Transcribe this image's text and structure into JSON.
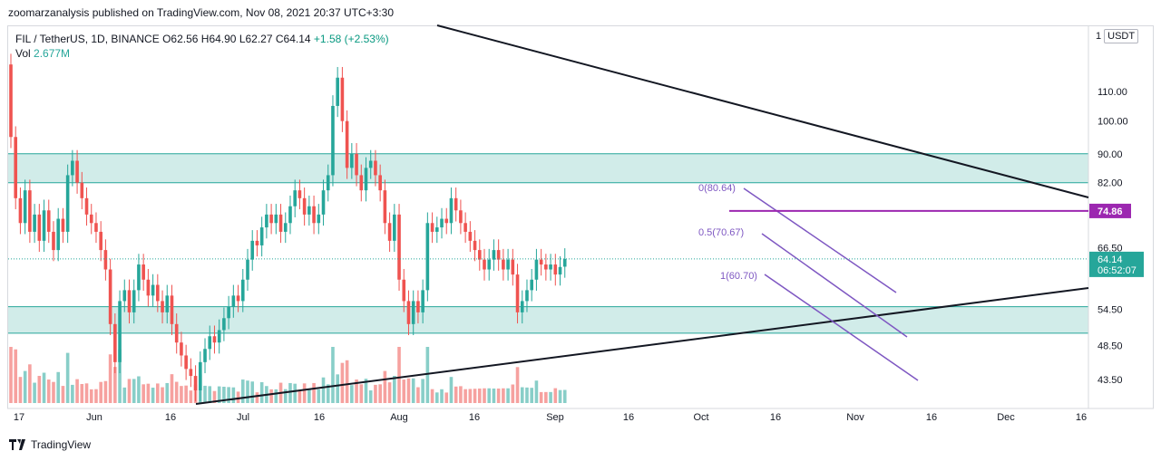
{
  "header": {
    "published": "zoomarzanalysis published on TradingView.com, Nov 08, 2021 20:37 UTC+3:30"
  },
  "legend": {
    "symbol": "FIL / TetherUS, 1D, BINANCE",
    "open": "O62.56",
    "high": "H64.90",
    "low": "L62.27",
    "close": "C64.14",
    "change": "+1.58 (+2.53%)",
    "vol_label": "Vol",
    "vol_value": "2.677M"
  },
  "currency": {
    "prefix": "1",
    "label": "USDT"
  },
  "colors": {
    "up": "#26a69a",
    "down": "#ef5350",
    "zone": "#b2dfdb",
    "purple": "#9c27b0",
    "fib": "#7e57c2"
  },
  "chart_data": {
    "type": "candlestick",
    "y_ticks": [
      "110.00",
      "100.00",
      "90.00",
      "82.00",
      "74.86",
      "66.50",
      "64.14",
      "54.50",
      "48.50",
      "43.50"
    ],
    "x_ticks": [
      "17",
      "Jun",
      "16",
      "Jul",
      "16",
      "Aug",
      "16",
      "Sep",
      "16",
      "Oct",
      "16",
      "Nov",
      "16",
      "Dec",
      "16"
    ],
    "price_scale": "log",
    "last_price": {
      "value": "64.14",
      "countdown": "06:52:07"
    },
    "level_74": {
      "value": "74.86"
    },
    "fib": {
      "top": "0(80.64)",
      "mid": "0.5(70.67)",
      "bottom": "1(60.70)"
    },
    "zones": [
      {
        "name": "upper-zone",
        "from": 82,
        "to": 90
      },
      {
        "name": "lower-zone",
        "from": 50.5,
        "to": 55
      }
    ],
    "series": [
      {
        "open": 120,
        "close": 95
      },
      {
        "open": 95,
        "close": 78
      },
      {
        "open": 78,
        "close": 72
      },
      {
        "open": 72,
        "close": 80
      },
      {
        "open": 80,
        "close": 70
      },
      {
        "open": 70,
        "close": 74
      },
      {
        "open": 74,
        "close": 68
      },
      {
        "open": 68,
        "close": 75
      },
      {
        "open": 75,
        "close": 70
      },
      {
        "open": 70,
        "close": 66
      },
      {
        "open": 66,
        "close": 73
      },
      {
        "open": 73,
        "close": 70
      },
      {
        "open": 70,
        "close": 84
      },
      {
        "open": 84,
        "close": 88
      },
      {
        "open": 88,
        "close": 82
      },
      {
        "open": 82,
        "close": 78
      },
      {
        "open": 78,
        "close": 74
      },
      {
        "open": 74,
        "close": 72
      },
      {
        "open": 72,
        "close": 70
      },
      {
        "open": 70,
        "close": 66
      },
      {
        "open": 66,
        "close": 62
      },
      {
        "open": 62,
        "close": 52
      },
      {
        "open": 52,
        "close": 46
      },
      {
        "open": 46,
        "close": 56
      },
      {
        "open": 56,
        "close": 58
      },
      {
        "open": 58,
        "close": 54
      },
      {
        "open": 54,
        "close": 58
      },
      {
        "open": 58,
        "close": 63
      },
      {
        "open": 63,
        "close": 60
      },
      {
        "open": 60,
        "close": 57
      },
      {
        "open": 57,
        "close": 59
      },
      {
        "open": 59,
        "close": 56
      },
      {
        "open": 56,
        "close": 54
      },
      {
        "open": 54,
        "close": 57
      },
      {
        "open": 57,
        "close": 52
      },
      {
        "open": 52,
        "close": 49
      },
      {
        "open": 49,
        "close": 47
      },
      {
        "open": 47,
        "close": 45
      },
      {
        "open": 45,
        "close": 44
      },
      {
        "open": 44,
        "close": 42
      },
      {
        "open": 42,
        "close": 46
      },
      {
        "open": 46,
        "close": 48
      },
      {
        "open": 48,
        "close": 50
      },
      {
        "open": 50,
        "close": 49
      },
      {
        "open": 49,
        "close": 51
      },
      {
        "open": 51,
        "close": 53
      },
      {
        "open": 53,
        "close": 55
      },
      {
        "open": 55,
        "close": 57
      },
      {
        "open": 57,
        "close": 56
      },
      {
        "open": 56,
        "close": 60
      },
      {
        "open": 60,
        "close": 64
      },
      {
        "open": 64,
        "close": 68
      },
      {
        "open": 68,
        "close": 67
      },
      {
        "open": 67,
        "close": 71
      },
      {
        "open": 71,
        "close": 74
      },
      {
        "open": 74,
        "close": 72
      },
      {
        "open": 72,
        "close": 74
      },
      {
        "open": 74,
        "close": 70
      },
      {
        "open": 70,
        "close": 72
      },
      {
        "open": 72,
        "close": 76
      },
      {
        "open": 76,
        "close": 80
      },
      {
        "open": 80,
        "close": 78
      },
      {
        "open": 78,
        "close": 74
      },
      {
        "open": 74,
        "close": 76
      },
      {
        "open": 76,
        "close": 72
      },
      {
        "open": 72,
        "close": 74
      },
      {
        "open": 74,
        "close": 80
      },
      {
        "open": 80,
        "close": 84
      },
      {
        "open": 84,
        "close": 105
      },
      {
        "open": 105,
        "close": 115
      },
      {
        "open": 115,
        "close": 100
      },
      {
        "open": 100,
        "close": 86
      },
      {
        "open": 86,
        "close": 90
      },
      {
        "open": 90,
        "close": 84
      },
      {
        "open": 84,
        "close": 80
      },
      {
        "open": 80,
        "close": 86
      },
      {
        "open": 86,
        "close": 88
      },
      {
        "open": 88,
        "close": 84
      },
      {
        "open": 84,
        "close": 80
      },
      {
        "open": 80,
        "close": 72
      },
      {
        "open": 72,
        "close": 68
      },
      {
        "open": 68,
        "close": 74
      },
      {
        "open": 74,
        "close": 60
      },
      {
        "open": 60,
        "close": 56
      },
      {
        "open": 56,
        "close": 52
      },
      {
        "open": 52,
        "close": 56
      },
      {
        "open": 56,
        "close": 54
      },
      {
        "open": 54,
        "close": 58
      },
      {
        "open": 58,
        "close": 72
      },
      {
        "open": 72,
        "close": 70
      },
      {
        "open": 70,
        "close": 71
      },
      {
        "open": 71,
        "close": 73
      },
      {
        "open": 73,
        "close": 72
      },
      {
        "open": 72,
        "close": 78
      },
      {
        "open": 78,
        "close": 75
      },
      {
        "open": 75,
        "close": 72
      },
      {
        "open": 72,
        "close": 70
      },
      {
        "open": 70,
        "close": 68
      },
      {
        "open": 68,
        "close": 66
      },
      {
        "open": 66,
        "close": 64
      },
      {
        "open": 64,
        "close": 62
      },
      {
        "open": 62,
        "close": 64
      },
      {
        "open": 64,
        "close": 66
      },
      {
        "open": 66,
        "close": 64
      },
      {
        "open": 64,
        "close": 62
      },
      {
        "open": 62,
        "close": 64
      },
      {
        "open": 64,
        "close": 61
      },
      {
        "open": 61,
        "close": 54
      },
      {
        "open": 54,
        "close": 56
      },
      {
        "open": 56,
        "close": 58
      },
      {
        "open": 58,
        "close": 60
      },
      {
        "open": 60,
        "close": 64
      },
      {
        "open": 64,
        "close": 63
      },
      {
        "open": 63,
        "close": 62
      },
      {
        "open": 62,
        "close": 63
      },
      {
        "open": 63,
        "close": 61
      },
      {
        "open": 61,
        "close": 62.5
      },
      {
        "open": 62.56,
        "close": 64.14
      }
    ]
  },
  "footer": {
    "brand": "TradingView"
  }
}
